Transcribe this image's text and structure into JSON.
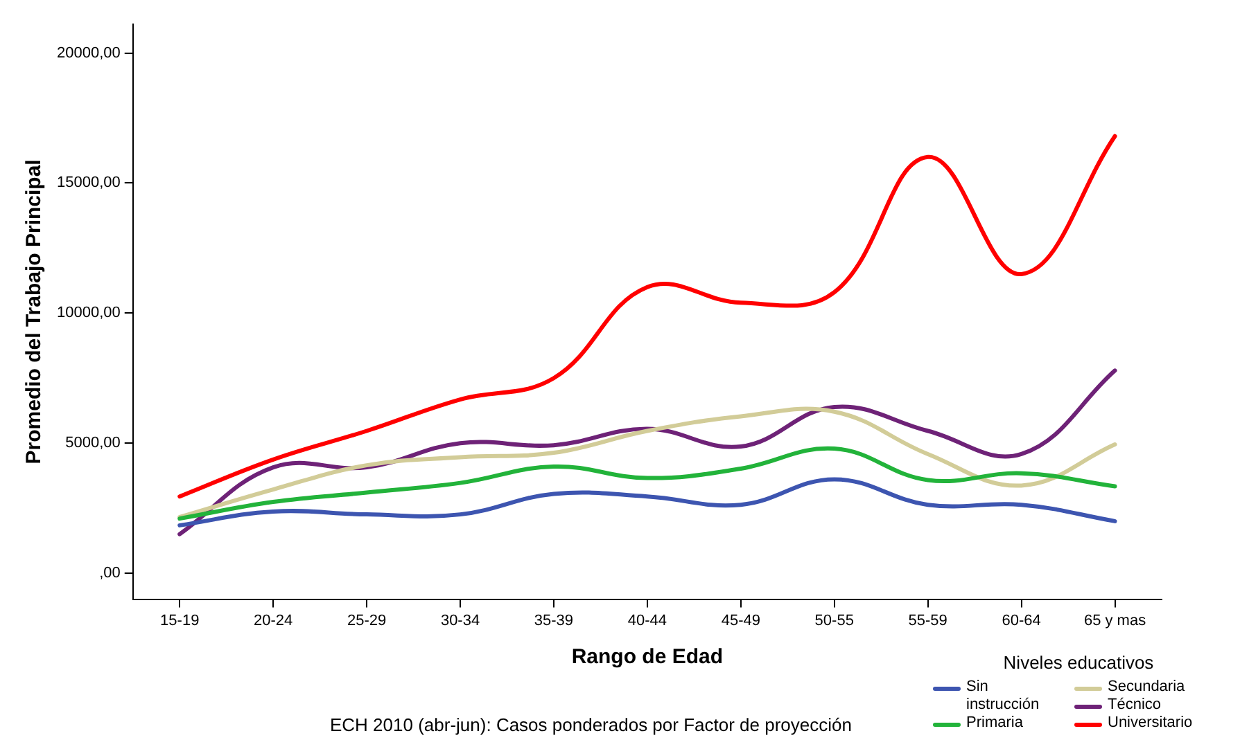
{
  "chart_data": {
    "type": "line",
    "xlabel": "Rango de Edad",
    "ylabel": "Promedio del Trabajo Principal",
    "legend_title": "Niveles educativos",
    "legend": "bottom right",
    "grid": false,
    "marker": "none",
    "line_style": "solid",
    "annotations": [
      "ECH 2010 (abr-jun): Casos ponderados por Factor de proyección"
    ],
    "categories": [
      "15-19",
      "20-24",
      "25-29",
      "30-34",
      "35-39",
      "40-44",
      "45-49",
      "50-55",
      "55-59",
      "60-64",
      "65 y mas"
    ],
    "ylim": [
      -1000,
      21100
    ],
    "yticks": [
      {
        "value": 0,
        "label": ",00"
      },
      {
        "value": 5000,
        "label": "5000,00"
      },
      {
        "value": 10000,
        "label": "10000,00"
      },
      {
        "value": 15000,
        "label": "15000,00"
      },
      {
        "value": 20000,
        "label": "20000,00"
      }
    ],
    "series": [
      {
        "name": "Sin instrucción",
        "color": "#3d55b0",
        "values": [
          1840,
          2370,
          2260,
          2260,
          3050,
          2950,
          2630,
          3610,
          2630,
          2630,
          2000
        ]
      },
      {
        "name": "Primaria",
        "color": "#22b33a",
        "values": [
          2100,
          2740,
          3100,
          3470,
          4100,
          3660,
          4020,
          4790,
          3580,
          3840,
          3340
        ]
      },
      {
        "name": "Secundaria",
        "color": "#d2cc98",
        "values": [
          2160,
          3220,
          4150,
          4460,
          4630,
          5470,
          6030,
          6210,
          4580,
          3370,
          4950
        ]
      },
      {
        "name": "Técnico",
        "color": "#6e2277",
        "values": [
          1500,
          4070,
          4070,
          5000,
          4920,
          5550,
          4870,
          6390,
          5470,
          4580,
          7790
        ]
      },
      {
        "name": "Universitario",
        "color": "#ff0000",
        "values": [
          2950,
          4370,
          5470,
          6680,
          7500,
          11000,
          10400,
          10800,
          16000,
          11500,
          16800
        ]
      }
    ]
  }
}
